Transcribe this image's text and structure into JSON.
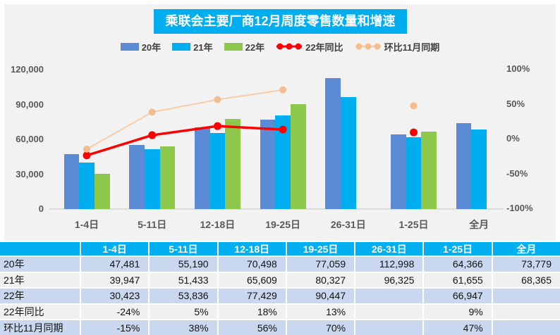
{
  "title": "乘联会主要厂商12月周度零售数量和增速",
  "colors": {
    "panel_bg": "#F2F2F3",
    "title_bg": "#00AEEF",
    "bar_blue": "#5B8BD5",
    "bar_cyan": "#00AEEF",
    "bar_green": "#8DC74C",
    "line_red": "#FF0000",
    "line_peach": "#F8CDA8",
    "marker_peach": "#F4BD8E",
    "table_header_bg": "#00AFF0",
    "row_blue": "#C9D8EE",
    "row_gray": "#F0F0F0",
    "axis_text": "#595959"
  },
  "legend": [
    {
      "label": "20年",
      "type": "bar",
      "color": "#5B8BD5"
    },
    {
      "label": "21年",
      "type": "bar",
      "color": "#00AEEF"
    },
    {
      "label": "22年",
      "type": "bar",
      "color": "#8DC74C"
    },
    {
      "label": "22年同比",
      "type": "line",
      "line_color": "#FF0000",
      "marker_color": "#FF0000"
    },
    {
      "label": "环比11月同期",
      "type": "line",
      "line_color": "#F8CDA8",
      "marker_color": "#F4BD8E"
    }
  ],
  "chart_data": {
    "type": "bar",
    "subtype": "grouped-bars-with-lines",
    "title": "乘联会主要厂商12月周度零售数量和增速",
    "categories": [
      "1-4日",
      "5-11日",
      "12-18日",
      "19-25日",
      "26-31日",
      "1-25日",
      "全月"
    ],
    "series": [
      {
        "name": "20年",
        "kind": "bar",
        "color": "#5B8BD5",
        "values": [
          47481,
          55190,
          70498,
          77059,
          112998,
          64366,
          73779
        ]
      },
      {
        "name": "21年",
        "kind": "bar",
        "color": "#00AEEF",
        "values": [
          39947,
          51433,
          65609,
          80327,
          96325,
          61655,
          68365
        ]
      },
      {
        "name": "22年",
        "kind": "bar",
        "color": "#8DC74C",
        "values": [
          30423,
          53836,
          77429,
          90447,
          null,
          66947,
          null
        ]
      },
      {
        "name": "22年同比",
        "kind": "line",
        "axis": "right",
        "line_color": "#FF0000",
        "marker_color": "#FF0000",
        "line_width": 3.5,
        "marker_r": 5.5,
        "values_pct": [
          -24,
          5,
          18,
          13,
          null,
          9,
          null
        ]
      },
      {
        "name": "环比11月同期",
        "kind": "line",
        "axis": "right",
        "line_color": "#F8CDA8",
        "marker_color": "#F4BD8E",
        "line_width": 2,
        "marker_r": 5,
        "values_pct": [
          -15,
          38,
          56,
          70,
          null,
          47,
          null
        ]
      }
    ],
    "left_axis": {
      "ticks": [
        "120,000",
        "90,000",
        "60,000",
        "30,000",
        "0"
      ],
      "min": 0,
      "max": 120000
    },
    "right_axis": {
      "ticks": [
        "100%",
        "50%",
        "0%",
        "-50%",
        "-100%"
      ],
      "min": -100,
      "max": 100
    },
    "grid": false,
    "legend_position": "top"
  },
  "table": {
    "col_headers": [
      "",
      "1-4日",
      "5-11日",
      "12-18日",
      "19-25日",
      "26-31日",
      "1-25日",
      "全月"
    ],
    "rows": [
      {
        "label": "20年",
        "cells": [
          "47,481",
          "55,190",
          "70,498",
          "77,059",
          "112,998",
          "64,366",
          "73,779"
        ]
      },
      {
        "label": "21年",
        "cells": [
          "39,947",
          "51,433",
          "65,609",
          "80,327",
          "96,325",
          "61,655",
          "68,365"
        ]
      },
      {
        "label": "22年",
        "cells": [
          "30,423",
          "53,836",
          "77,429",
          "90,447",
          "",
          "66,947",
          ""
        ]
      },
      {
        "label": "22年同比",
        "cells": [
          "-24%",
          "5%",
          "18%",
          "13%",
          "",
          "9%",
          ""
        ]
      },
      {
        "label": "环比11月同期",
        "cells": [
          "-15%",
          "38%",
          "56%",
          "70%",
          "",
          "47%",
          ""
        ]
      }
    ]
  }
}
